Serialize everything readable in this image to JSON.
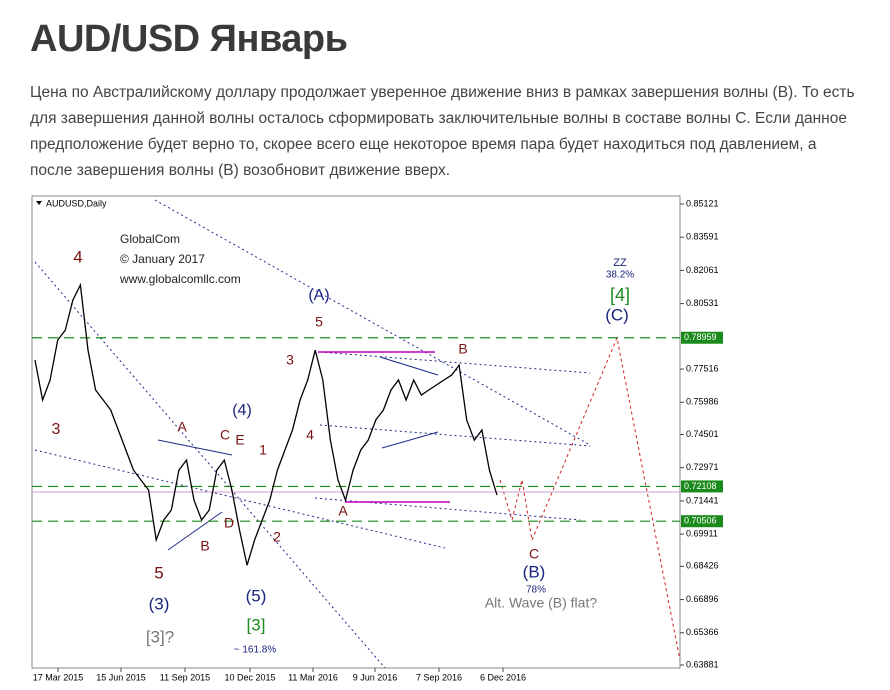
{
  "header": {
    "title": "AUD/USD Январь"
  },
  "paragraph": "Цена по Австралийскому доллару продолжает уверенное движение вниз в рамках завершения волны (B). То есть для завершения данной волны осталось сформировать заключительные волны в составе волны С. Если данное предположение будет верно то, скорее всего еще некоторое время пара будет находиться под давлением, а после завершения волны (B) возобновит движение вверх.",
  "chart_data": {
    "type": "line",
    "title": "AUDUSD,Daily",
    "color": "#000000",
    "values": [
      0.7793,
      0.7609,
      0.7701,
      0.7885,
      0.7931,
      0.807,
      0.8139,
      0.7839,
      0.7655,
      0.7609,
      0.7563,
      0.7471,
      0.7378,
      0.7286,
      0.724,
      0.7194,
      0.6964,
      0.7056,
      0.7102,
      0.7286,
      0.7332,
      0.7148,
      0.7056,
      0.7102,
      0.7286,
      0.7332,
      0.7194,
      0.701,
      0.6848,
      0.6964,
      0.7056,
      0.7148,
      0.7286,
      0.7378,
      0.7471,
      0.7609,
      0.7701,
      0.7839,
      0.7701,
      0.7424,
      0.724,
      0.7148,
      0.7286,
      0.7378,
      0.7424,
      0.7517,
      0.7563,
      0.7655,
      0.7701,
      0.7609,
      0.7701,
      0.7632,
      0.7655,
      0.7678,
      0.7701,
      0.7724,
      0.777,
      0.7517,
      0.7424,
      0.7471,
      0.7286,
      0.7171
    ],
    "x_labels": [
      "17 Mar 2015",
      "15 Jun 2015",
      "11 Sep 2015",
      "10 Dec 2015",
      "11 Mar 2016",
      "9 Jun 2016",
      "7 Sep 2016",
      "6 Dec 2016"
    ],
    "ylim": [
      0.63881,
      0.85121
    ],
    "yticks": [
      0.85121,
      0.83591,
      0.82061,
      0.80531,
      0.77516,
      0.75986,
      0.74501,
      0.72971,
      0.71441,
      0.69911,
      0.68426,
      0.66896,
      0.65366,
      0.63881
    ],
    "levels": [
      {
        "value": 0.78959,
        "color": "#1a8a1a"
      },
      {
        "value": 0.72108,
        "color": "#1a8a1a"
      },
      {
        "value": 0.70506,
        "color": "#1a8a1a"
      }
    ],
    "annotations": [
      {
        "text": "GlobalCom"
      },
      {
        "text": "© January 2017"
      },
      {
        "text": "www.globalcomllc.com"
      },
      {
        "text": "4"
      },
      {
        "text": "3"
      },
      {
        "text": "5"
      },
      {
        "text": "(3)"
      },
      {
        "text": "[3]?"
      },
      {
        "text": "A"
      },
      {
        "text": "C"
      },
      {
        "text": "E"
      },
      {
        "text": "D"
      },
      {
        "text": "B"
      },
      {
        "text": "(4)"
      },
      {
        "text": "1"
      },
      {
        "text": "2"
      },
      {
        "text": "(5)"
      },
      {
        "text": "[3]"
      },
      {
        "text": "~ 161.8%"
      },
      {
        "text": "(A)"
      },
      {
        "text": "5"
      },
      {
        "text": "3"
      },
      {
        "text": "4"
      },
      {
        "text": "A"
      },
      {
        "text": "B"
      },
      {
        "text": "ZZ"
      },
      {
        "text": "38.2%"
      },
      {
        "text": "[4]"
      },
      {
        "text": "(C)"
      },
      {
        "text": "C"
      },
      {
        "text": "(B)"
      },
      {
        "text": "78%"
      },
      {
        "text": "Alt. Wave (B) flat?"
      }
    ]
  }
}
